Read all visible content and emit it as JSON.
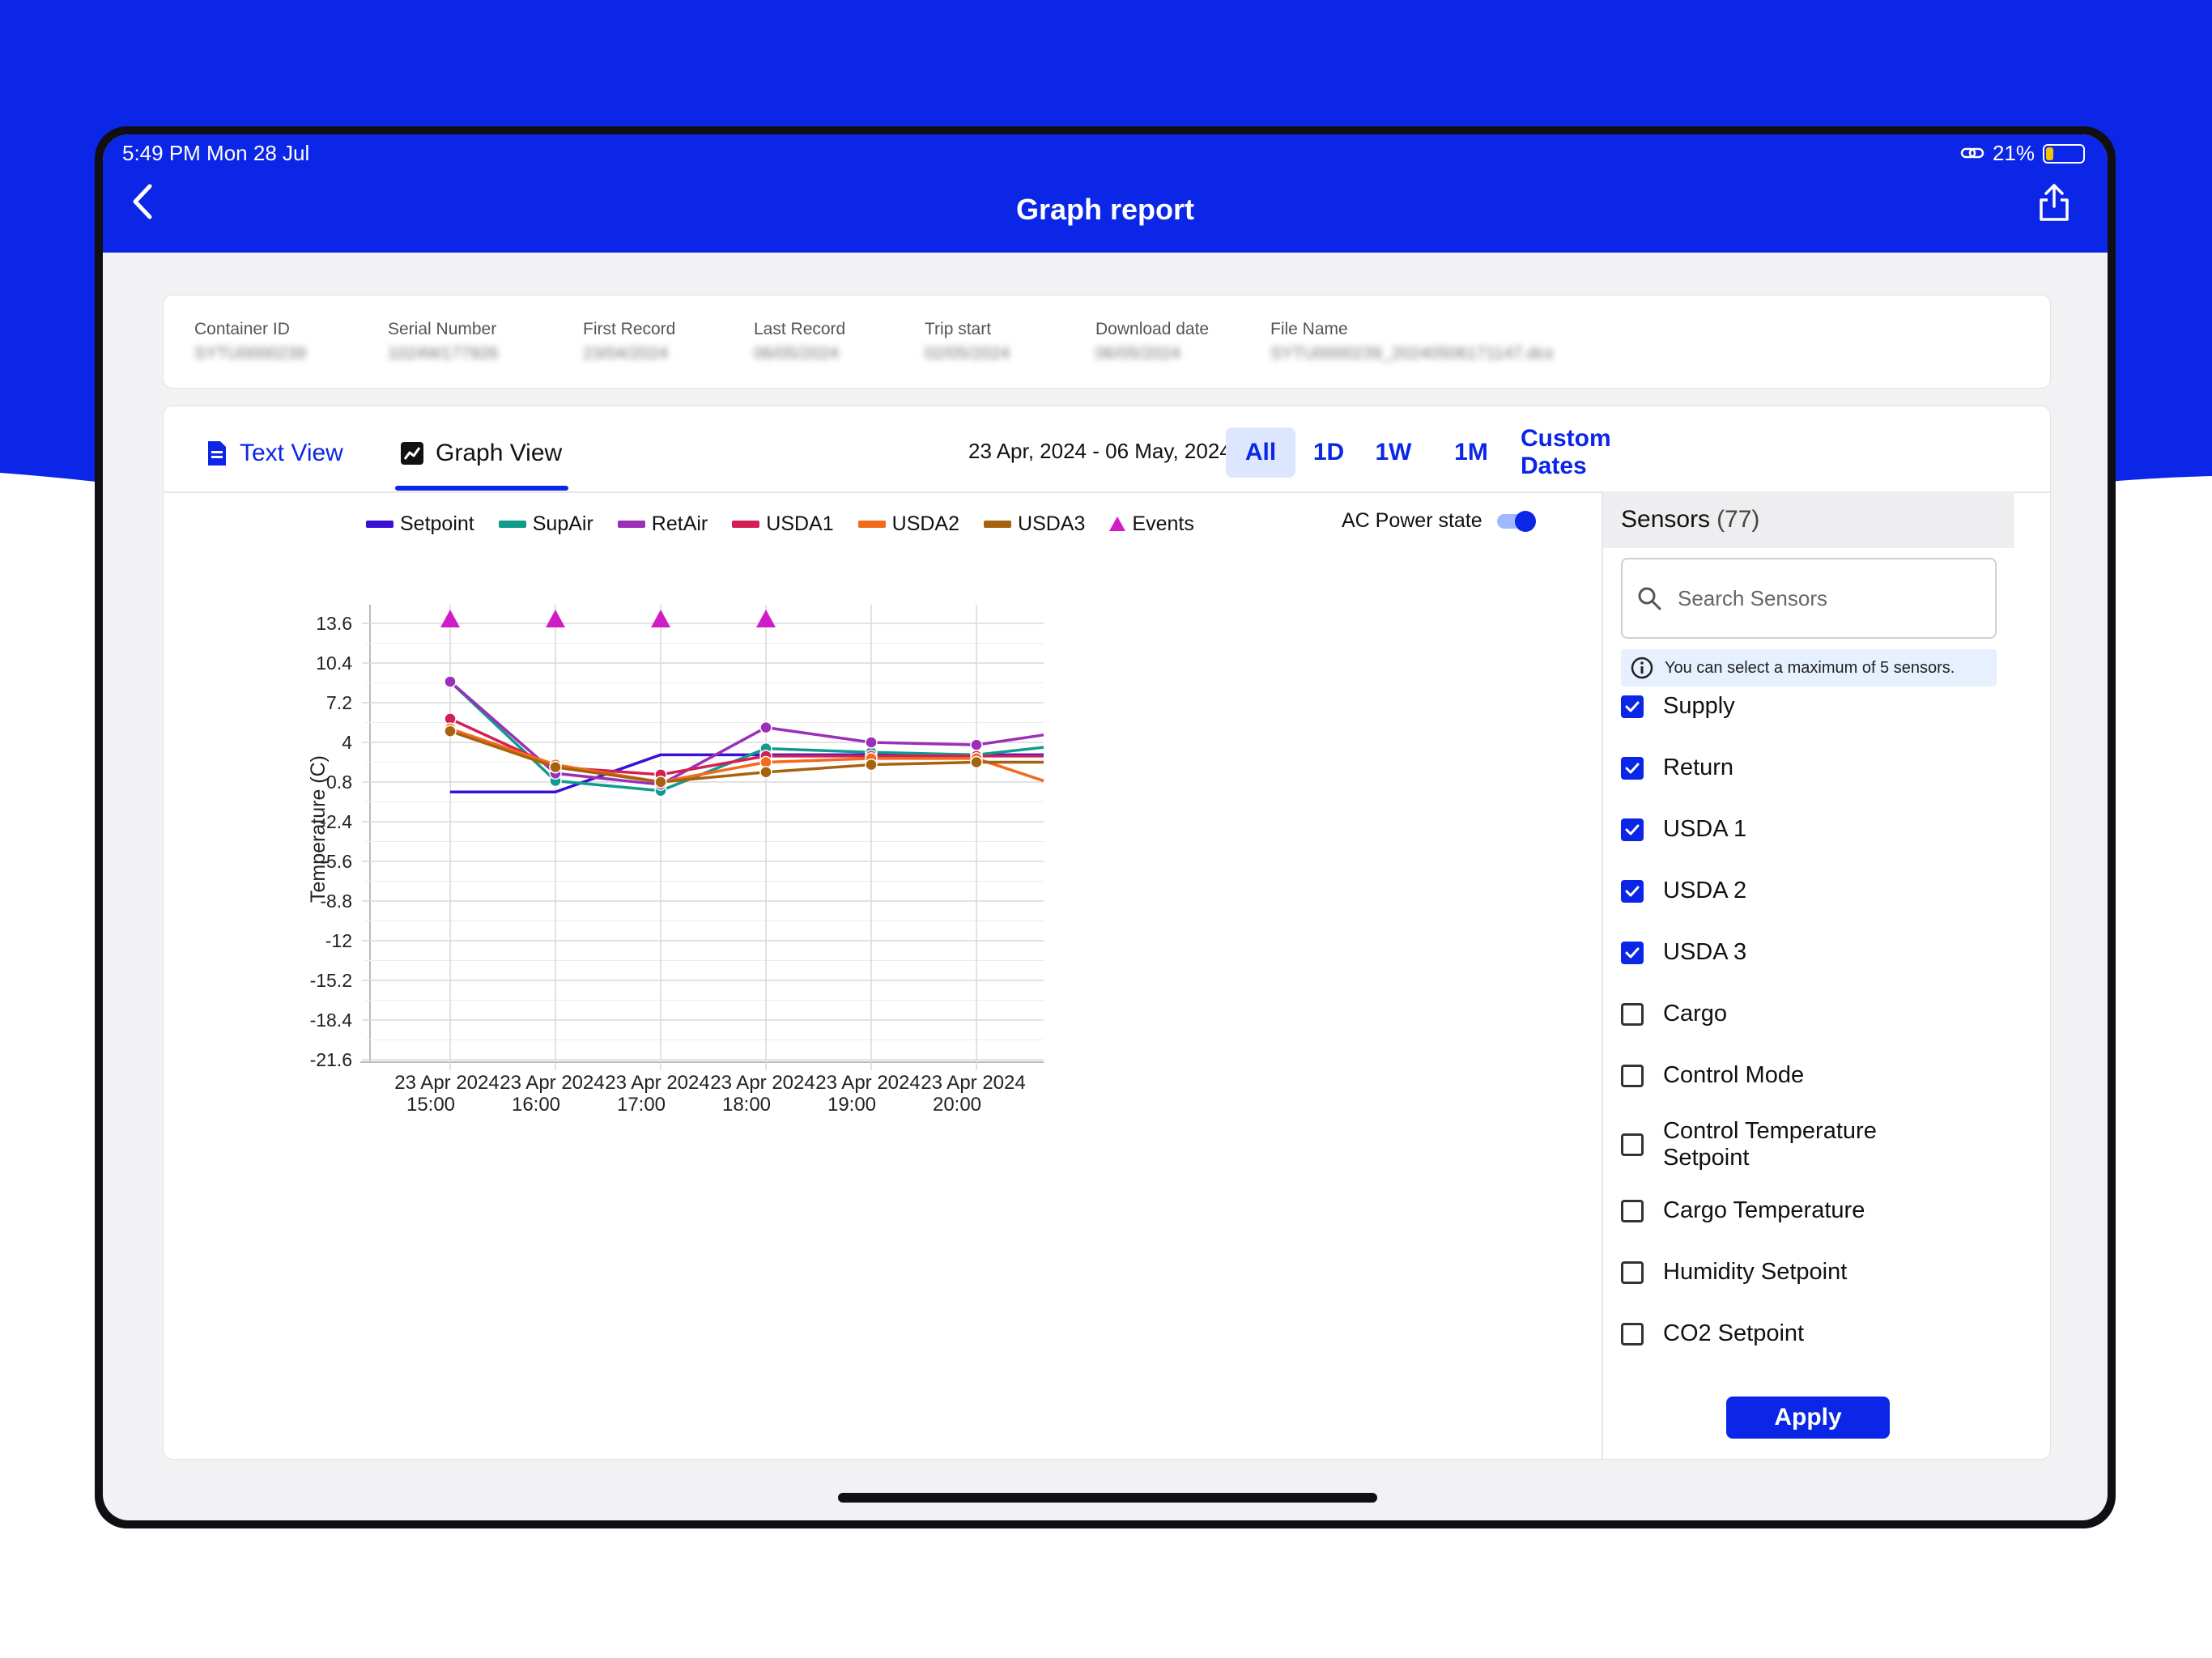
{
  "colors": {
    "brand": "#0b26e6",
    "setpoint": "#3a0fd6",
    "supair": "#119b8c",
    "retair": "#9b2fb8",
    "usda1": "#d41f56",
    "usda2": "#f26a1b",
    "usda3": "#a6620f",
    "events": "#d01cc8"
  },
  "status_bar": {
    "time": "5:49 PM   Mon 28 Jul",
    "battery": "21%"
  },
  "header": {
    "title": "Graph report",
    "back_icon": "chevron-left-icon",
    "share_icon": "share-icon"
  },
  "info": [
    {
      "label": "Container ID",
      "value": "SYTU0000239"
    },
    {
      "label": "Serial Number",
      "value": "1024W177926"
    },
    {
      "label": "First Record",
      "value": "23/04/2024"
    },
    {
      "label": "Last Record",
      "value": "06/05/2024"
    },
    {
      "label": "Trip start",
      "value": "02/05/2024"
    },
    {
      "label": "Download date",
      "value": "06/05/2024"
    },
    {
      "label": "File Name",
      "value": "SYTU0000239_20240506171147.dcx"
    }
  ],
  "tabs": {
    "text_view": "Text View",
    "graph_view": "Graph View"
  },
  "date_range": "23 Apr, 2024 - 06 May, 2024",
  "range_buttons": {
    "all": "All",
    "d1": "1D",
    "w1": "1W",
    "m1": "1M",
    "custom": "Custom Dates"
  },
  "legend": {
    "setpoint": "Setpoint",
    "supair": "SupAir",
    "retair": "RetAir",
    "usda1": "USDA1",
    "usda2": "USDA2",
    "usda3": "USDA3",
    "events": "Events",
    "ac_power_state": "AC Power state",
    "ac_power_on": true
  },
  "chart_data": {
    "type": "line",
    "ylabel": "Temperature (C)",
    "y_ticks": [
      "13.6",
      "10.4",
      "7.2",
      "4",
      "0.8",
      "-2.4",
      "-5.6",
      "-8.8",
      "-12",
      "-15.2",
      "-18.4",
      "-21.6"
    ],
    "ylim": [
      -21.6,
      13.6
    ],
    "x_ticks": [
      {
        "date": "23 Apr 2024",
        "time": "15:00"
      },
      {
        "date": "23 Apr 2024",
        "time": "16:00"
      },
      {
        "date": "23 Apr 2024",
        "time": "17:00"
      },
      {
        "date": "23 Apr 2024",
        "time": "18:00"
      },
      {
        "date": "23 Apr 2024",
        "time": "19:00"
      },
      {
        "date": "23 Apr 2024",
        "time": "20:00"
      }
    ],
    "x": [
      "15:00",
      "16:00",
      "17:00",
      "18:00",
      "19:00",
      "20:00",
      "20:40"
    ],
    "series": [
      {
        "name": "Setpoint",
        "color": "#3a0fd6",
        "values": [
          0.0,
          0.0,
          3.0,
          3.0,
          3.0,
          3.0,
          3.0
        ],
        "markers": false
      },
      {
        "name": "SupAir",
        "color": "#119b8c",
        "values": [
          8.9,
          0.9,
          0.1,
          3.5,
          3.2,
          3.0,
          3.6
        ],
        "markers": true
      },
      {
        "name": "RetAir",
        "color": "#9b2fb8",
        "values": [
          8.9,
          1.5,
          0.6,
          5.2,
          4.0,
          3.8,
          4.6
        ],
        "markers": true
      },
      {
        "name": "USDA1",
        "color": "#d41f56",
        "values": [
          5.9,
          2.0,
          1.4,
          2.9,
          2.9,
          2.9,
          2.9
        ],
        "markers": true
      },
      {
        "name": "USDA2",
        "color": "#f26a1b",
        "values": [
          5.1,
          2.2,
          0.8,
          2.4,
          2.7,
          2.7,
          0.9
        ],
        "markers": true
      },
      {
        "name": "USDA3",
        "color": "#a6620f",
        "values": [
          4.9,
          2.0,
          0.8,
          1.6,
          2.2,
          2.4,
          2.4
        ],
        "markers": true
      }
    ],
    "events": [
      "15:00",
      "16:00",
      "17:00",
      "18:00"
    ],
    "grid": true
  },
  "sensors": {
    "title": "Sensors",
    "count": "(77)",
    "search_placeholder": "Search Sensors",
    "note": "You can select a maximum of 5 sensors.",
    "items": [
      {
        "label": "Supply",
        "checked": true
      },
      {
        "label": "Return",
        "checked": true
      },
      {
        "label": "USDA 1",
        "checked": true
      },
      {
        "label": "USDA 2",
        "checked": true
      },
      {
        "label": "USDA 3",
        "checked": true
      },
      {
        "label": "Cargo",
        "checked": false
      },
      {
        "label": "Control Mode",
        "checked": false
      },
      {
        "label": "Control Temperature Setpoint",
        "checked": false
      },
      {
        "label": "Cargo Temperature",
        "checked": false
      },
      {
        "label": "Humidity Setpoint",
        "checked": false
      },
      {
        "label": "CO2 Setpoint",
        "checked": false
      }
    ],
    "apply_label": "Apply"
  }
}
